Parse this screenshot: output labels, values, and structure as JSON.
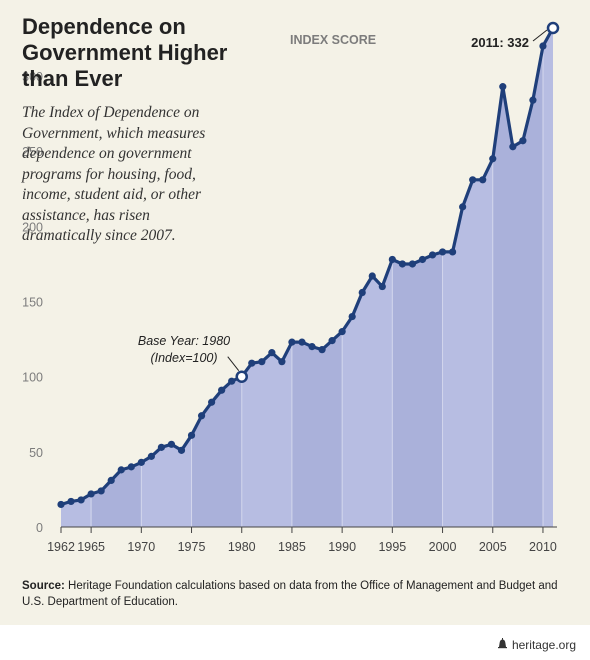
{
  "title": "Dependence on Government Higher than Ever",
  "description": "The Index of Dependence on Government, which measures dependence on government programs for housing, food, income, student aid, or other assistance, has risen dramatically since 2007.",
  "source": {
    "label": "Source:",
    "text": "Heritage Foundation calculations based on data from the Office of Management and Budget and U.S. Department of Education."
  },
  "footer": {
    "site": "heritage.org",
    "icon": "liberty-bell-icon"
  },
  "colors": {
    "background": "#f4f2e7",
    "line": "#1f3f7a",
    "area": "#b7bde2",
    "band": "#aab1da"
  },
  "chart_data": {
    "type": "area",
    "ylabel": "INDEX SCORE",
    "xlabel": "",
    "xlim": [
      1962,
      2011
    ],
    "ylim": [
      0,
      332
    ],
    "x_ticks": [
      1962,
      1965,
      1970,
      1975,
      1980,
      1985,
      1990,
      1995,
      2000,
      2005,
      2010
    ],
    "y_ticks": [
      0,
      50,
      100,
      150,
      200,
      250,
      300
    ],
    "x": [
      1962,
      1963,
      1964,
      1965,
      1966,
      1967,
      1968,
      1969,
      1970,
      1971,
      1972,
      1973,
      1974,
      1975,
      1976,
      1977,
      1978,
      1979,
      1980,
      1981,
      1982,
      1983,
      1984,
      1985,
      1986,
      1987,
      1988,
      1989,
      1990,
      1991,
      1992,
      1993,
      1994,
      1995,
      1996,
      1997,
      1998,
      1999,
      2000,
      2001,
      2002,
      2003,
      2004,
      2005,
      2006,
      2007,
      2008,
      2009,
      2010,
      2011
    ],
    "series": [
      {
        "values": [
          15,
          17,
          18,
          22,
          24,
          31,
          38,
          40,
          43,
          47,
          53,
          55,
          51,
          61,
          74,
          83,
          91,
          97,
          100,
          109,
          110,
          116,
          110,
          123,
          123,
          120,
          118,
          124,
          130,
          140,
          156,
          167,
          160,
          178,
          175,
          175,
          178,
          181,
          183,
          183,
          213,
          231,
          231,
          245,
          293,
          253,
          257,
          284,
          320,
          332
        ]
      }
    ],
    "annotations": [
      {
        "x": 1980,
        "y": 100,
        "lines": [
          "Base Year: 1980",
          "(Index=100)"
        ]
      },
      {
        "x": 2011,
        "y": 332,
        "text": "2011: 332"
      }
    ],
    "grid": false
  }
}
